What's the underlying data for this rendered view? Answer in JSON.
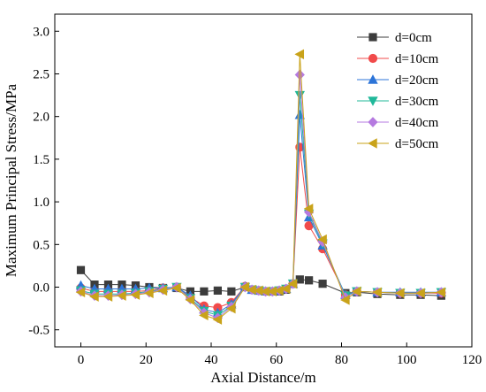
{
  "chart_data": {
    "type": "line",
    "title": "",
    "xlabel": "Axial Distance/m",
    "ylabel": "Maximum Principal Stress/MPa",
    "xlim": [
      -8,
      120
    ],
    "ylim": [
      -0.7,
      3.2
    ],
    "xticks": [
      "0",
      "20",
      "40",
      "60",
      "80",
      "100",
      "120"
    ],
    "yticks": [
      "-0.5",
      "0.0",
      "0.5",
      "1.0",
      "1.5",
      "2.0",
      "2.5",
      "3.0"
    ],
    "grid": false,
    "legend": "top-right",
    "x": [
      0,
      4.2,
      8.4,
      12.6,
      16.8,
      21,
      25.2,
      29.4,
      33.6,
      37.8,
      42,
      46.2,
      50.4,
      52.5,
      54.6,
      56.7,
      58.8,
      60.9,
      63,
      65.1,
      67.2,
      70,
      74.2,
      81.2,
      84.7,
      91,
      98,
      104.3,
      110.6
    ],
    "series": [
      {
        "name": "d=0cm",
        "color": "#3c3c3c",
        "marker": "square",
        "values": [
          0.2,
          0.03,
          0.03,
          0.03,
          0.02,
          0.0,
          -0.01,
          -0.01,
          -0.05,
          -0.05,
          -0.04,
          -0.05,
          0.0,
          -0.03,
          -0.04,
          -0.05,
          -0.05,
          -0.05,
          -0.03,
          0.04,
          0.09,
          0.08,
          0.04,
          -0.07,
          -0.06,
          -0.08,
          -0.09,
          -0.09,
          -0.1
        ]
      },
      {
        "name": "d=10cm",
        "color": "#f14b4b",
        "marker": "circle",
        "values": [
          -0.01,
          -0.05,
          -0.05,
          -0.05,
          -0.05,
          -0.04,
          -0.01,
          0.0,
          -0.12,
          -0.22,
          -0.24,
          -0.18,
          0.01,
          -0.03,
          -0.04,
          -0.05,
          -0.05,
          -0.04,
          -0.02,
          0.04,
          1.64,
          0.72,
          0.45,
          -0.09,
          -0.05,
          -0.06,
          -0.07,
          -0.07,
          -0.07
        ]
      },
      {
        "name": "d=20cm",
        "color": "#2c74d8",
        "marker": "triangle-up",
        "values": [
          0.02,
          -0.02,
          -0.02,
          -0.02,
          -0.02,
          -0.01,
          -0.01,
          0.0,
          -0.1,
          -0.26,
          -0.3,
          -0.2,
          0.01,
          -0.03,
          -0.04,
          -0.05,
          -0.05,
          -0.04,
          -0.02,
          0.04,
          2.02,
          0.82,
          0.49,
          -0.09,
          -0.05,
          -0.06,
          -0.06,
          -0.06,
          -0.06
        ]
      },
      {
        "name": "d=30cm",
        "color": "#20b89a",
        "marker": "triangle-down",
        "values": [
          -0.04,
          -0.08,
          -0.08,
          -0.08,
          -0.07,
          -0.05,
          -0.02,
          0.0,
          -0.13,
          -0.28,
          -0.33,
          -0.22,
          0.0,
          -0.03,
          -0.04,
          -0.05,
          -0.05,
          -0.04,
          -0.02,
          0.04,
          2.25,
          0.86,
          0.51,
          -0.1,
          -0.05,
          -0.06,
          -0.07,
          -0.07,
          -0.06
        ]
      },
      {
        "name": "d=40cm",
        "color": "#b57ae0",
        "marker": "diamond",
        "values": [
          -0.05,
          -0.1,
          -0.1,
          -0.09,
          -0.08,
          -0.06,
          -0.03,
          0.0,
          -0.14,
          -0.3,
          -0.36,
          -0.23,
          0.0,
          -0.03,
          -0.04,
          -0.05,
          -0.05,
          -0.04,
          -0.02,
          0.04,
          2.49,
          0.88,
          0.53,
          -0.12,
          -0.05,
          -0.06,
          -0.07,
          -0.07,
          -0.06
        ]
      },
      {
        "name": "d=50cm",
        "color": "#c9a31a",
        "marker": "triangle-left",
        "values": [
          -0.06,
          -0.11,
          -0.11,
          -0.1,
          -0.09,
          -0.07,
          -0.04,
          -0.01,
          -0.15,
          -0.33,
          -0.38,
          -0.25,
          0.0,
          -0.03,
          -0.04,
          -0.05,
          -0.05,
          -0.04,
          -0.02,
          0.04,
          2.73,
          0.92,
          0.56,
          -0.15,
          -0.05,
          -0.06,
          -0.07,
          -0.07,
          -0.06
        ]
      }
    ]
  }
}
